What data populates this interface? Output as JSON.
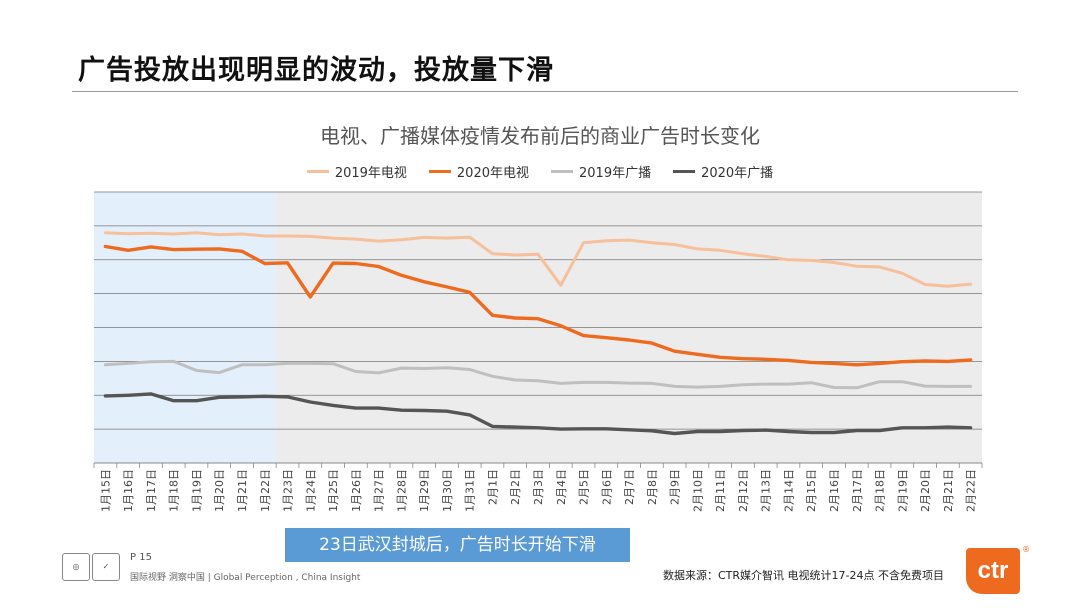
{
  "slide": {
    "title": "广告投放出现明显的波动，投放量下滑",
    "callout": "23日武汉封城后，广告时长开始下滑",
    "page": "P 15",
    "tagline": "国际视野 洞察中国 | Global Perception , China Insight",
    "source": "数据来源：CTR媒介智讯  电视统计17-24点  不含免费项目",
    "logo_text": "ctr",
    "reg_mark": "®"
  },
  "colors": {
    "tv2019": "#f7bf9a",
    "tv2020": "#ee6a1f",
    "radio2019": "#bfbfbf",
    "radio2020": "#555555",
    "callout": "#5b9bd5",
    "pre_region": "#e3effb",
    "post_region": "#ececec"
  },
  "chart_data": {
    "type": "line",
    "title": "电视、广播媒体疫情发布前后的商业广告时长变化",
    "xlabel": "",
    "ylabel": "",
    "y_axis_labels_shown": false,
    "ylim": [
      0,
      8
    ],
    "grid": true,
    "legend_position": "top-center",
    "shaded_regions": [
      {
        "from": "1月15日",
        "to": "1月22日",
        "color": "light-blue"
      },
      {
        "from": "1月23日",
        "to": "2月22日",
        "color": "light-gray"
      }
    ],
    "categories": [
      "1月15日",
      "1月16日",
      "1月17日",
      "1月18日",
      "1月19日",
      "1月20日",
      "1月21日",
      "1月22日",
      "1月23日",
      "1月24日",
      "1月25日",
      "1月26日",
      "1月27日",
      "1月28日",
      "1月29日",
      "1月30日",
      "1月31日",
      "2月1日",
      "2月2日",
      "2月3日",
      "2月4日",
      "2月5日",
      "2月6日",
      "2月7日",
      "2月8日",
      "2月9日",
      "2月10日",
      "2月11日",
      "2月12日",
      "2月13日",
      "2月14日",
      "2月15日",
      "2月16日",
      "2月17日",
      "2月18日",
      "2月19日",
      "2月20日",
      "2月21日",
      "2月22日"
    ],
    "series": [
      {
        "name": "2019年电视",
        "values": [
          6.8,
          6.77,
          6.78,
          6.76,
          6.8,
          6.74,
          6.76,
          6.7,
          6.7,
          6.69,
          6.64,
          6.61,
          6.55,
          6.59,
          6.66,
          6.64,
          6.67,
          6.18,
          6.14,
          6.16,
          5.25,
          6.5,
          6.56,
          6.58,
          6.5,
          6.45,
          6.32,
          6.28,
          6.18,
          6.1,
          6.0,
          5.98,
          5.92,
          5.81,
          5.79,
          5.6,
          5.27,
          5.22,
          5.28
        ]
      },
      {
        "name": "2020年电视",
        "values": [
          6.39,
          6.28,
          6.38,
          6.3,
          6.31,
          6.32,
          6.25,
          5.89,
          5.91,
          4.9,
          5.9,
          5.89,
          5.8,
          5.54,
          5.35,
          5.2,
          5.04,
          4.36,
          4.28,
          4.26,
          4.05,
          3.76,
          3.7,
          3.63,
          3.54,
          3.3,
          3.21,
          3.12,
          3.08,
          3.06,
          3.03,
          2.97,
          2.94,
          2.9,
          2.94,
          2.99,
          3.01,
          3.0,
          3.04
        ]
      },
      {
        "name": "2019年广播",
        "values": [
          2.9,
          2.94,
          2.99,
          3.0,
          2.73,
          2.67,
          2.9,
          2.9,
          2.94,
          2.94,
          2.93,
          2.7,
          2.66,
          2.8,
          2.79,
          2.81,
          2.76,
          2.56,
          2.45,
          2.43,
          2.35,
          2.38,
          2.38,
          2.36,
          2.35,
          2.26,
          2.24,
          2.26,
          2.31,
          2.33,
          2.33,
          2.37,
          2.23,
          2.22,
          2.4,
          2.4,
          2.27,
          2.26,
          2.26
        ]
      },
      {
        "name": "2020年广播",
        "values": [
          1.98,
          2.0,
          2.04,
          1.84,
          1.84,
          1.94,
          1.95,
          1.97,
          1.95,
          1.8,
          1.7,
          1.62,
          1.62,
          1.56,
          1.55,
          1.53,
          1.42,
          1.08,
          1.06,
          1.04,
          1.0,
          1.01,
          1.01,
          0.98,
          0.95,
          0.87,
          0.93,
          0.93,
          0.96,
          0.97,
          0.93,
          0.9,
          0.9,
          0.96,
          0.96,
          1.04,
          1.04,
          1.06,
          1.04
        ]
      }
    ]
  }
}
